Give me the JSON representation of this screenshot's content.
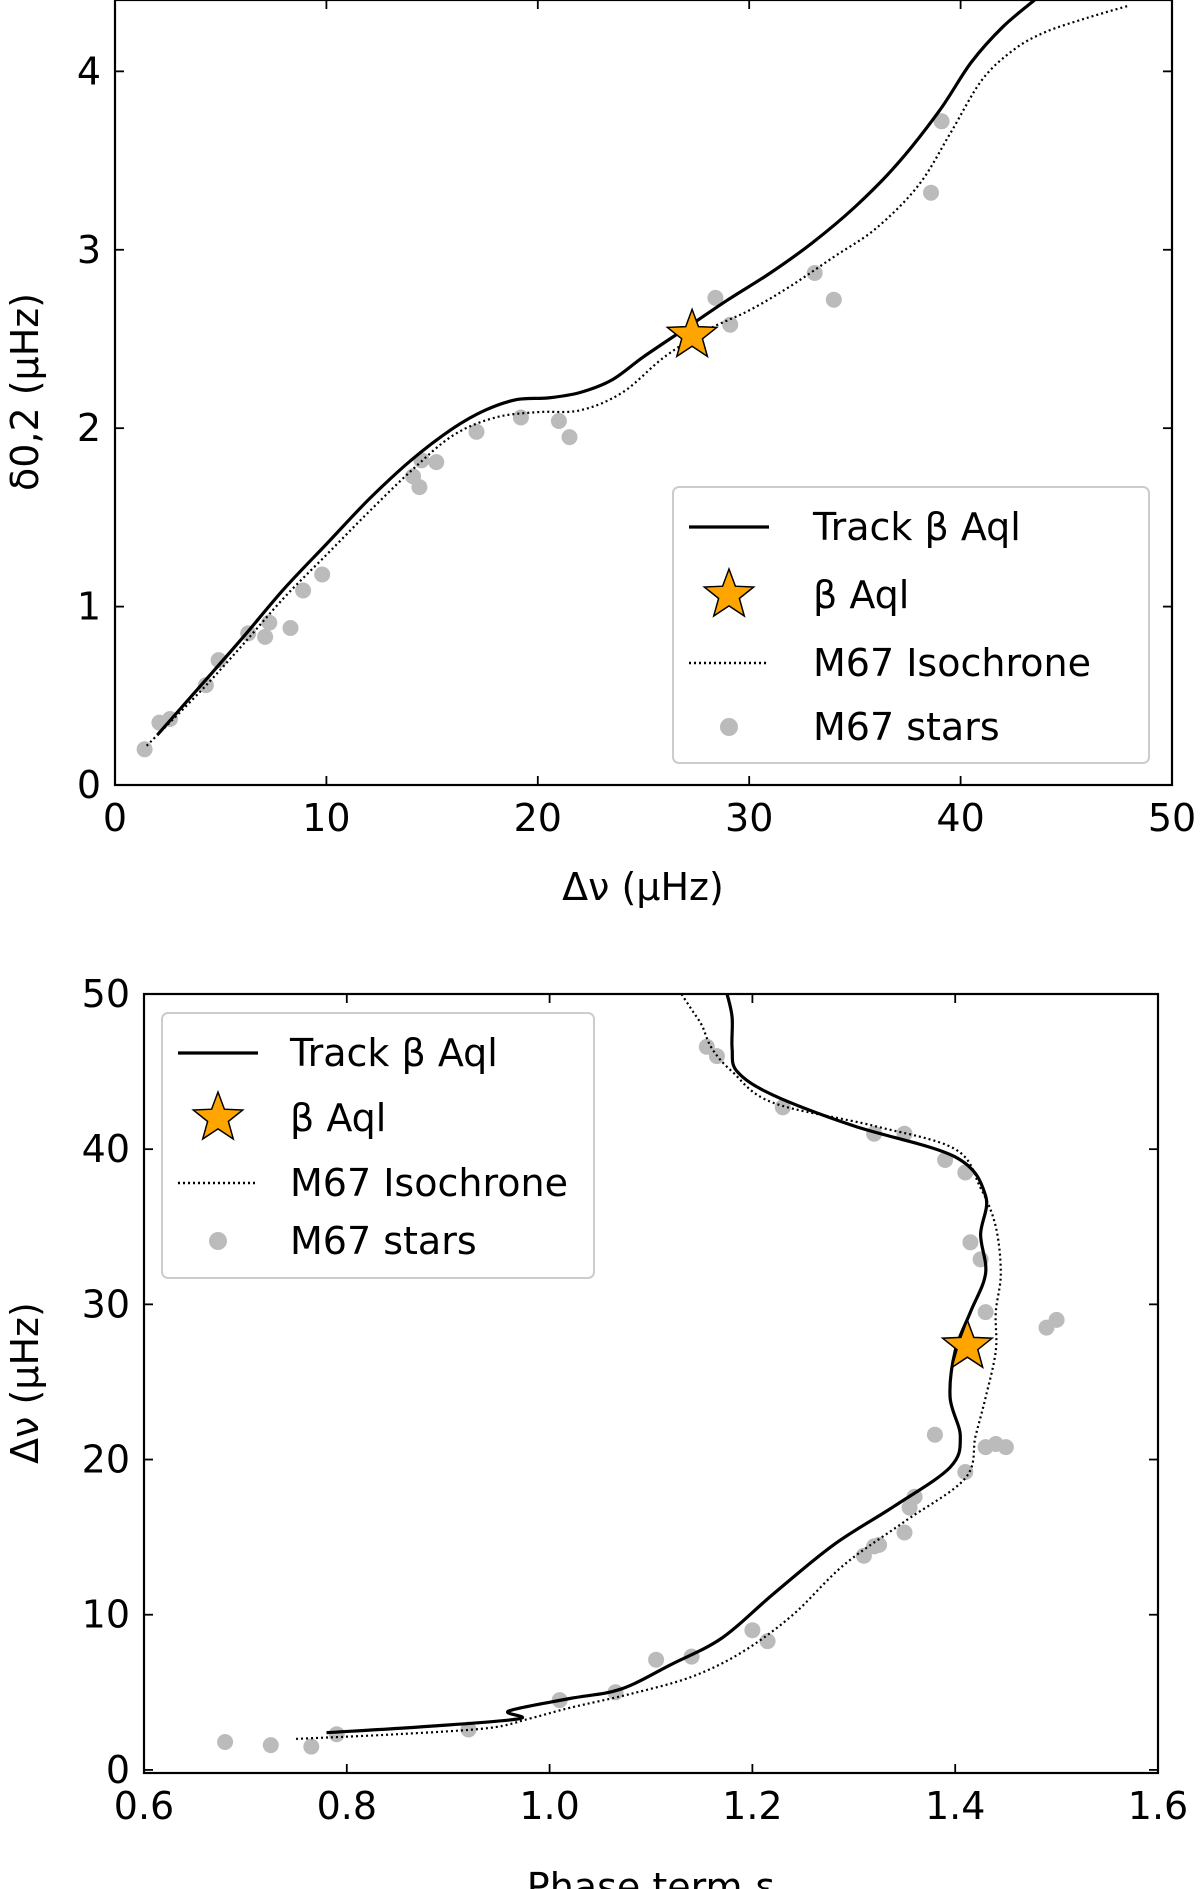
{
  "colors": {
    "track": "#000000",
    "isochrone": "#000000",
    "stars": "#bbbbbb",
    "beta_aql_fill": "#ffa500",
    "beta_aql_edge": "#000000"
  },
  "chart_data": [
    {
      "type": "line",
      "id": "top",
      "xlabel": "Δν (μHz)",
      "ylabel": "δ0,2 (μHz)",
      "xlim": [
        0,
        50
      ],
      "ylim": [
        0,
        4.4
      ],
      "xticks": [
        0,
        10,
        20,
        30,
        40,
        50
      ],
      "yticks": [
        0,
        1,
        2,
        3,
        4
      ],
      "xtick_labels": [
        "0",
        "10",
        "20",
        "30",
        "40",
        "50"
      ],
      "ytick_labels": [
        "0",
        "1",
        "2",
        "3",
        "4"
      ],
      "legend_position": "lower-right",
      "legend": [
        {
          "label": "Track β Aql",
          "kind": "solid"
        },
        {
          "label": "β Aql",
          "kind": "star"
        },
        {
          "label": "M67 Isochrone",
          "kind": "dotted"
        },
        {
          "label": "M67 stars",
          "kind": "point"
        }
      ],
      "series": [
        {
          "name": "Track β Aql",
          "style": "solid",
          "x": [
            2,
            4,
            6,
            8,
            10,
            12,
            14,
            16,
            17.5,
            19,
            20.5,
            22,
            23.5,
            25,
            27,
            29,
            31,
            33,
            35,
            37,
            39,
            40.5,
            42,
            43.5
          ],
          "y": [
            0.28,
            0.55,
            0.82,
            1.1,
            1.35,
            1.6,
            1.82,
            2.0,
            2.1,
            2.16,
            2.17,
            2.2,
            2.27,
            2.4,
            2.56,
            2.72,
            2.87,
            3.04,
            3.24,
            3.48,
            3.78,
            4.05,
            4.25,
            4.4
          ]
        },
        {
          "name": "M67 Isochrone",
          "style": "dotted",
          "x": [
            1.5,
            4,
            6,
            8,
            10,
            12,
            14,
            16,
            18,
            20,
            22,
            24,
            26,
            28,
            30,
            32,
            34,
            36,
            38,
            39.5,
            41,
            42.5,
            44,
            46,
            48
          ],
          "y": [
            0.22,
            0.52,
            0.78,
            1.05,
            1.29,
            1.53,
            1.76,
            1.96,
            2.06,
            2.09,
            2.1,
            2.2,
            2.4,
            2.55,
            2.66,
            2.8,
            2.96,
            3.12,
            3.36,
            3.65,
            3.95,
            4.12,
            4.22,
            4.3,
            4.37
          ]
        },
        {
          "name": "M67 stars",
          "style": "points",
          "x": [
            1.4,
            2.1,
            2.6,
            4.3,
            4.9,
            6.3,
            7.1,
            7.3,
            8.3,
            8.9,
            9.8,
            14.1,
            14.4,
            14.5,
            15.2,
            17.1,
            19.2,
            21.0,
            21.5,
            28.4,
            29.1,
            33.1,
            34.0,
            38.6,
            39.1
          ],
          "y": [
            0.2,
            0.35,
            0.37,
            0.56,
            0.7,
            0.85,
            0.83,
            0.91,
            0.88,
            1.09,
            1.18,
            1.73,
            1.67,
            1.82,
            1.81,
            1.98,
            2.06,
            2.04,
            1.95,
            2.73,
            2.58,
            2.87,
            2.72,
            3.32,
            3.72
          ]
        },
        {
          "name": "β Aql",
          "style": "star",
          "x": [
            27.3
          ],
          "y": [
            2.52
          ]
        }
      ]
    },
    {
      "type": "line",
      "id": "bottom",
      "xlabel": "Phase term ε",
      "ylabel": "Δν (μHz)",
      "xlim": [
        0.6,
        1.6
      ],
      "ylim": [
        -0.2,
        50
      ],
      "xticks": [
        0.6,
        0.8,
        1.0,
        1.2,
        1.4,
        1.6
      ],
      "yticks": [
        0,
        10,
        20,
        30,
        40,
        50
      ],
      "xtick_labels": [
        "0.6",
        "0.8",
        "1.0",
        "1.2",
        "1.4",
        "1.6"
      ],
      "ytick_labels": [
        "0",
        "10",
        "20",
        "30",
        "40",
        "50"
      ],
      "legend_position": "upper-left",
      "legend": [
        {
          "label": "Track β Aql",
          "kind": "solid"
        },
        {
          "label": "β Aql",
          "kind": "star"
        },
        {
          "label": "M67 Isochrone",
          "kind": "dotted"
        },
        {
          "label": "M67 stars",
          "kind": "point"
        }
      ],
      "series": [
        {
          "name": "Track β Aql",
          "style": "solid",
          "x": [
            0.78,
            0.88,
            0.97,
            0.96,
            1.02,
            1.07,
            1.12,
            1.17,
            1.22,
            1.28,
            1.34,
            1.395,
            1.405,
            1.395,
            1.4,
            1.415,
            1.43,
            1.425,
            1.43,
            1.4,
            1.3,
            1.22,
            1.185,
            1.18,
            1.18,
            1.175
          ],
          "y": [
            2.4,
            2.8,
            3.3,
            3.8,
            4.6,
            5.2,
            6.8,
            8.5,
            11.3,
            14.5,
            17.0,
            19.5,
            21.5,
            24.0,
            27.0,
            29.5,
            32.0,
            34.5,
            37.0,
            39.5,
            41.5,
            43.5,
            45.0,
            46.5,
            48.5,
            50.0
          ]
        },
        {
          "name": "M67 Isochrone",
          "style": "dotted",
          "x": [
            0.75,
            0.85,
            0.94,
            0.98,
            1.02,
            1.08,
            1.14,
            1.19,
            1.24,
            1.29,
            1.35,
            1.41,
            1.42,
            1.43,
            1.44,
            1.44,
            1.445,
            1.44,
            1.425,
            1.4,
            1.32,
            1.22,
            1.18,
            1.16,
            1.15,
            1.14,
            1.13
          ],
          "y": [
            2.0,
            2.3,
            2.7,
            3.3,
            4.0,
            4.9,
            6.0,
            7.6,
            10.0,
            13.2,
            16.0,
            18.8,
            21.5,
            24.0,
            27.0,
            29.5,
            32.0,
            35.0,
            37.5,
            40.0,
            41.5,
            43.0,
            45.0,
            46.5,
            48.0,
            49.0,
            50.0
          ]
        },
        {
          "name": "M67 stars",
          "style": "points",
          "x": [
            0.68,
            0.725,
            0.765,
            0.79,
            0.92,
            1.01,
            1.065,
            1.105,
            1.14,
            1.2,
            1.215,
            1.31,
            1.32,
            1.325,
            1.35,
            1.355,
            1.36,
            1.38,
            1.41,
            1.43,
            1.44,
            1.45,
            1.49,
            1.5,
            1.43,
            1.425,
            1.415,
            1.41,
            1.39,
            1.35,
            1.32,
            1.23,
            1.165,
            1.155
          ],
          "y": [
            1.8,
            1.6,
            1.5,
            2.3,
            2.6,
            4.5,
            5.0,
            7.1,
            7.3,
            9.0,
            8.3,
            13.8,
            14.4,
            14.5,
            15.3,
            16.9,
            17.6,
            21.6,
            19.2,
            20.8,
            21.0,
            20.8,
            28.5,
            29.0,
            29.5,
            32.9,
            34.0,
            38.5,
            39.3,
            41.0,
            41.0,
            42.7,
            46.0,
            46.6
          ]
        },
        {
          "name": "β Aql",
          "style": "star",
          "x": [
            1.412
          ],
          "y": [
            27.3
          ]
        }
      ]
    }
  ]
}
